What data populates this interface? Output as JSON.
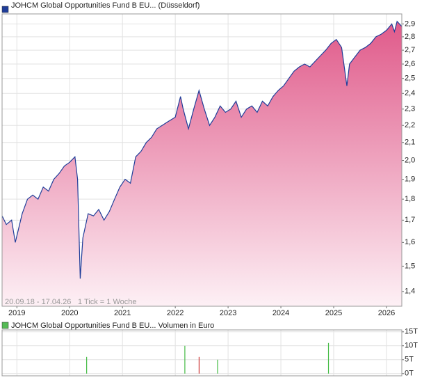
{
  "chart_data": [
    {
      "type": "line",
      "log_scale": true,
      "grid": true,
      "date_range": "20.09.18 - 17.04.26",
      "tick_info": "1 Tick = 1 Woche",
      "x": [
        2018.72,
        2018.8,
        2018.9,
        2018.97,
        2019.1,
        2019.2,
        2019.3,
        2019.4,
        2019.5,
        2019.6,
        2019.7,
        2019.8,
        2019.9,
        2020.0,
        2020.1,
        2020.15,
        2020.2,
        2020.25,
        2020.35,
        2020.45,
        2020.55,
        2020.65,
        2020.75,
        2020.85,
        2020.95,
        2021.05,
        2021.15,
        2021.25,
        2021.35,
        2021.45,
        2021.55,
        2021.65,
        2021.75,
        2021.85,
        2022.0,
        2022.1,
        2022.15,
        2022.25,
        2022.35,
        2022.45,
        2022.55,
        2022.65,
        2022.75,
        2022.85,
        2022.95,
        2023.05,
        2023.15,
        2023.25,
        2023.35,
        2023.45,
        2023.55,
        2023.65,
        2023.75,
        2023.85,
        2023.95,
        2024.05,
        2024.15,
        2024.25,
        2024.35,
        2024.45,
        2024.55,
        2024.65,
        2024.75,
        2024.85,
        2024.95,
        2025.05,
        2025.15,
        2025.25,
        2025.3,
        2025.4,
        2025.5,
        2025.6,
        2025.7,
        2025.8,
        2025.9,
        2026.0,
        2026.1,
        2026.15,
        2026.2,
        2026.29
      ],
      "series": [
        {
          "name": "JOHCM Global Opportunities Fund B EU... (Düsseldorf)",
          "color": "#1f3d99",
          "values": [
            1.72,
            1.68,
            1.7,
            1.6,
            1.73,
            1.8,
            1.82,
            1.8,
            1.86,
            1.84,
            1.9,
            1.93,
            1.97,
            1.99,
            2.02,
            1.9,
            1.45,
            1.62,
            1.73,
            1.72,
            1.75,
            1.7,
            1.74,
            1.8,
            1.86,
            1.9,
            1.88,
            2.02,
            2.05,
            2.1,
            2.13,
            2.18,
            2.2,
            2.22,
            2.25,
            2.38,
            2.3,
            2.18,
            2.3,
            2.42,
            2.3,
            2.2,
            2.25,
            2.32,
            2.28,
            2.3,
            2.35,
            2.25,
            2.3,
            2.32,
            2.28,
            2.35,
            2.32,
            2.38,
            2.42,
            2.45,
            2.5,
            2.55,
            2.58,
            2.6,
            2.58,
            2.62,
            2.66,
            2.7,
            2.75,
            2.78,
            2.72,
            2.45,
            2.6,
            2.65,
            2.7,
            2.72,
            2.75,
            2.8,
            2.82,
            2.85,
            2.9,
            2.84,
            2.92,
            2.88
          ]
        }
      ],
      "xlim": [
        2018.72,
        2026.29
      ],
      "xticks": [
        2019,
        2020,
        2021,
        2022,
        2023,
        2024,
        2025,
        2026
      ],
      "ylim": [
        1.345,
        2.98
      ],
      "yticks": [
        {
          "value": 1.4,
          "label": "1,4"
        },
        {
          "value": 1.5,
          "label": "1,5"
        },
        {
          "value": 1.6,
          "label": "1,6"
        },
        {
          "value": 1.7,
          "label": "1,7"
        },
        {
          "value": 1.8,
          "label": "1,8"
        },
        {
          "value": 1.9,
          "label": "1,9"
        },
        {
          "value": 2.0,
          "label": "2,0"
        },
        {
          "value": 2.1,
          "label": "2,1"
        },
        {
          "value": 2.2,
          "label": "2,2"
        },
        {
          "value": 2.3,
          "label": "2,3"
        },
        {
          "value": 2.4,
          "label": "2,4"
        },
        {
          "value": 2.5,
          "label": "2,5"
        },
        {
          "value": 2.6,
          "label": "2,6"
        },
        {
          "value": 2.7,
          "label": "2,7"
        },
        {
          "value": 2.8,
          "label": "2,8"
        },
        {
          "value": 2.9,
          "label": "2,9"
        }
      ]
    },
    {
      "type": "bar",
      "grid": true,
      "title": "JOHCM Global Opportunities Fund B EU... Volumen in Euro",
      "legend_color": "#55bb55",
      "x": [
        2020.32,
        2022.18,
        2022.45,
        2022.8,
        2024.9
      ],
      "values": [
        6,
        10,
        6,
        5,
        11
      ],
      "colors": [
        "#44bb44",
        "#44bb44",
        "#cc3333",
        "#44bb44",
        "#44bb44"
      ],
      "xlim": [
        2018.72,
        2026.29
      ],
      "ylim": [
        -0.8,
        15.7
      ],
      "yticks": [
        {
          "value": 0,
          "label": "0T"
        },
        {
          "value": 5,
          "label": "5T"
        },
        {
          "value": 10,
          "label": "10T"
        },
        {
          "value": 15,
          "label": "15T"
        }
      ]
    }
  ]
}
